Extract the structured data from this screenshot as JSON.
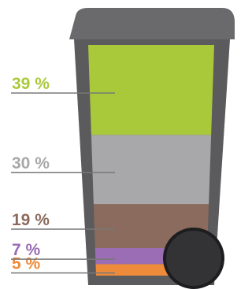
{
  "chart_data": {
    "type": "stacked-bin",
    "values": [
      39,
      30,
      19,
      7,
      5
    ],
    "value_labels": [
      "39 %",
      "30 %",
      "19 %",
      "7 %",
      "5 %"
    ],
    "colors": [
      "#a9c93b",
      "#a8a8aa",
      "#8b6b5d",
      "#9a6db4",
      "#ee8b3b"
    ],
    "ylim": [
      0,
      100
    ]
  }
}
